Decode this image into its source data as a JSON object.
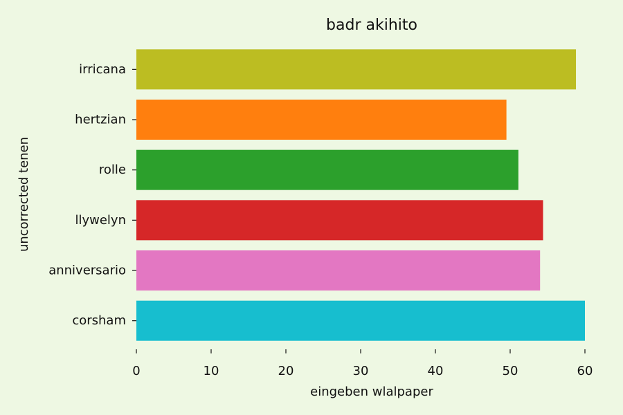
{
  "chart_data": {
    "type": "bar",
    "orientation": "horizontal",
    "title": "badr akihito",
    "xlabel": "eingeben wlalpaper",
    "ylabel": "uncorrected tenen",
    "xlim": [
      0,
      60
    ],
    "xticks": [
      0,
      10,
      20,
      30,
      40,
      50,
      60
    ],
    "grid": false,
    "categories": [
      "irricana",
      "hertzian",
      "rolle",
      "llywelyn",
      "anniversario",
      "corsham"
    ],
    "values": [
      58.8,
      49.5,
      51.1,
      54.4,
      54.0,
      60.0
    ],
    "colors": [
      "#bcbd22",
      "#ff7f0e",
      "#2ca02c",
      "#d62728",
      "#e377c2",
      "#17becf"
    ],
    "background": "#eef8e3"
  }
}
